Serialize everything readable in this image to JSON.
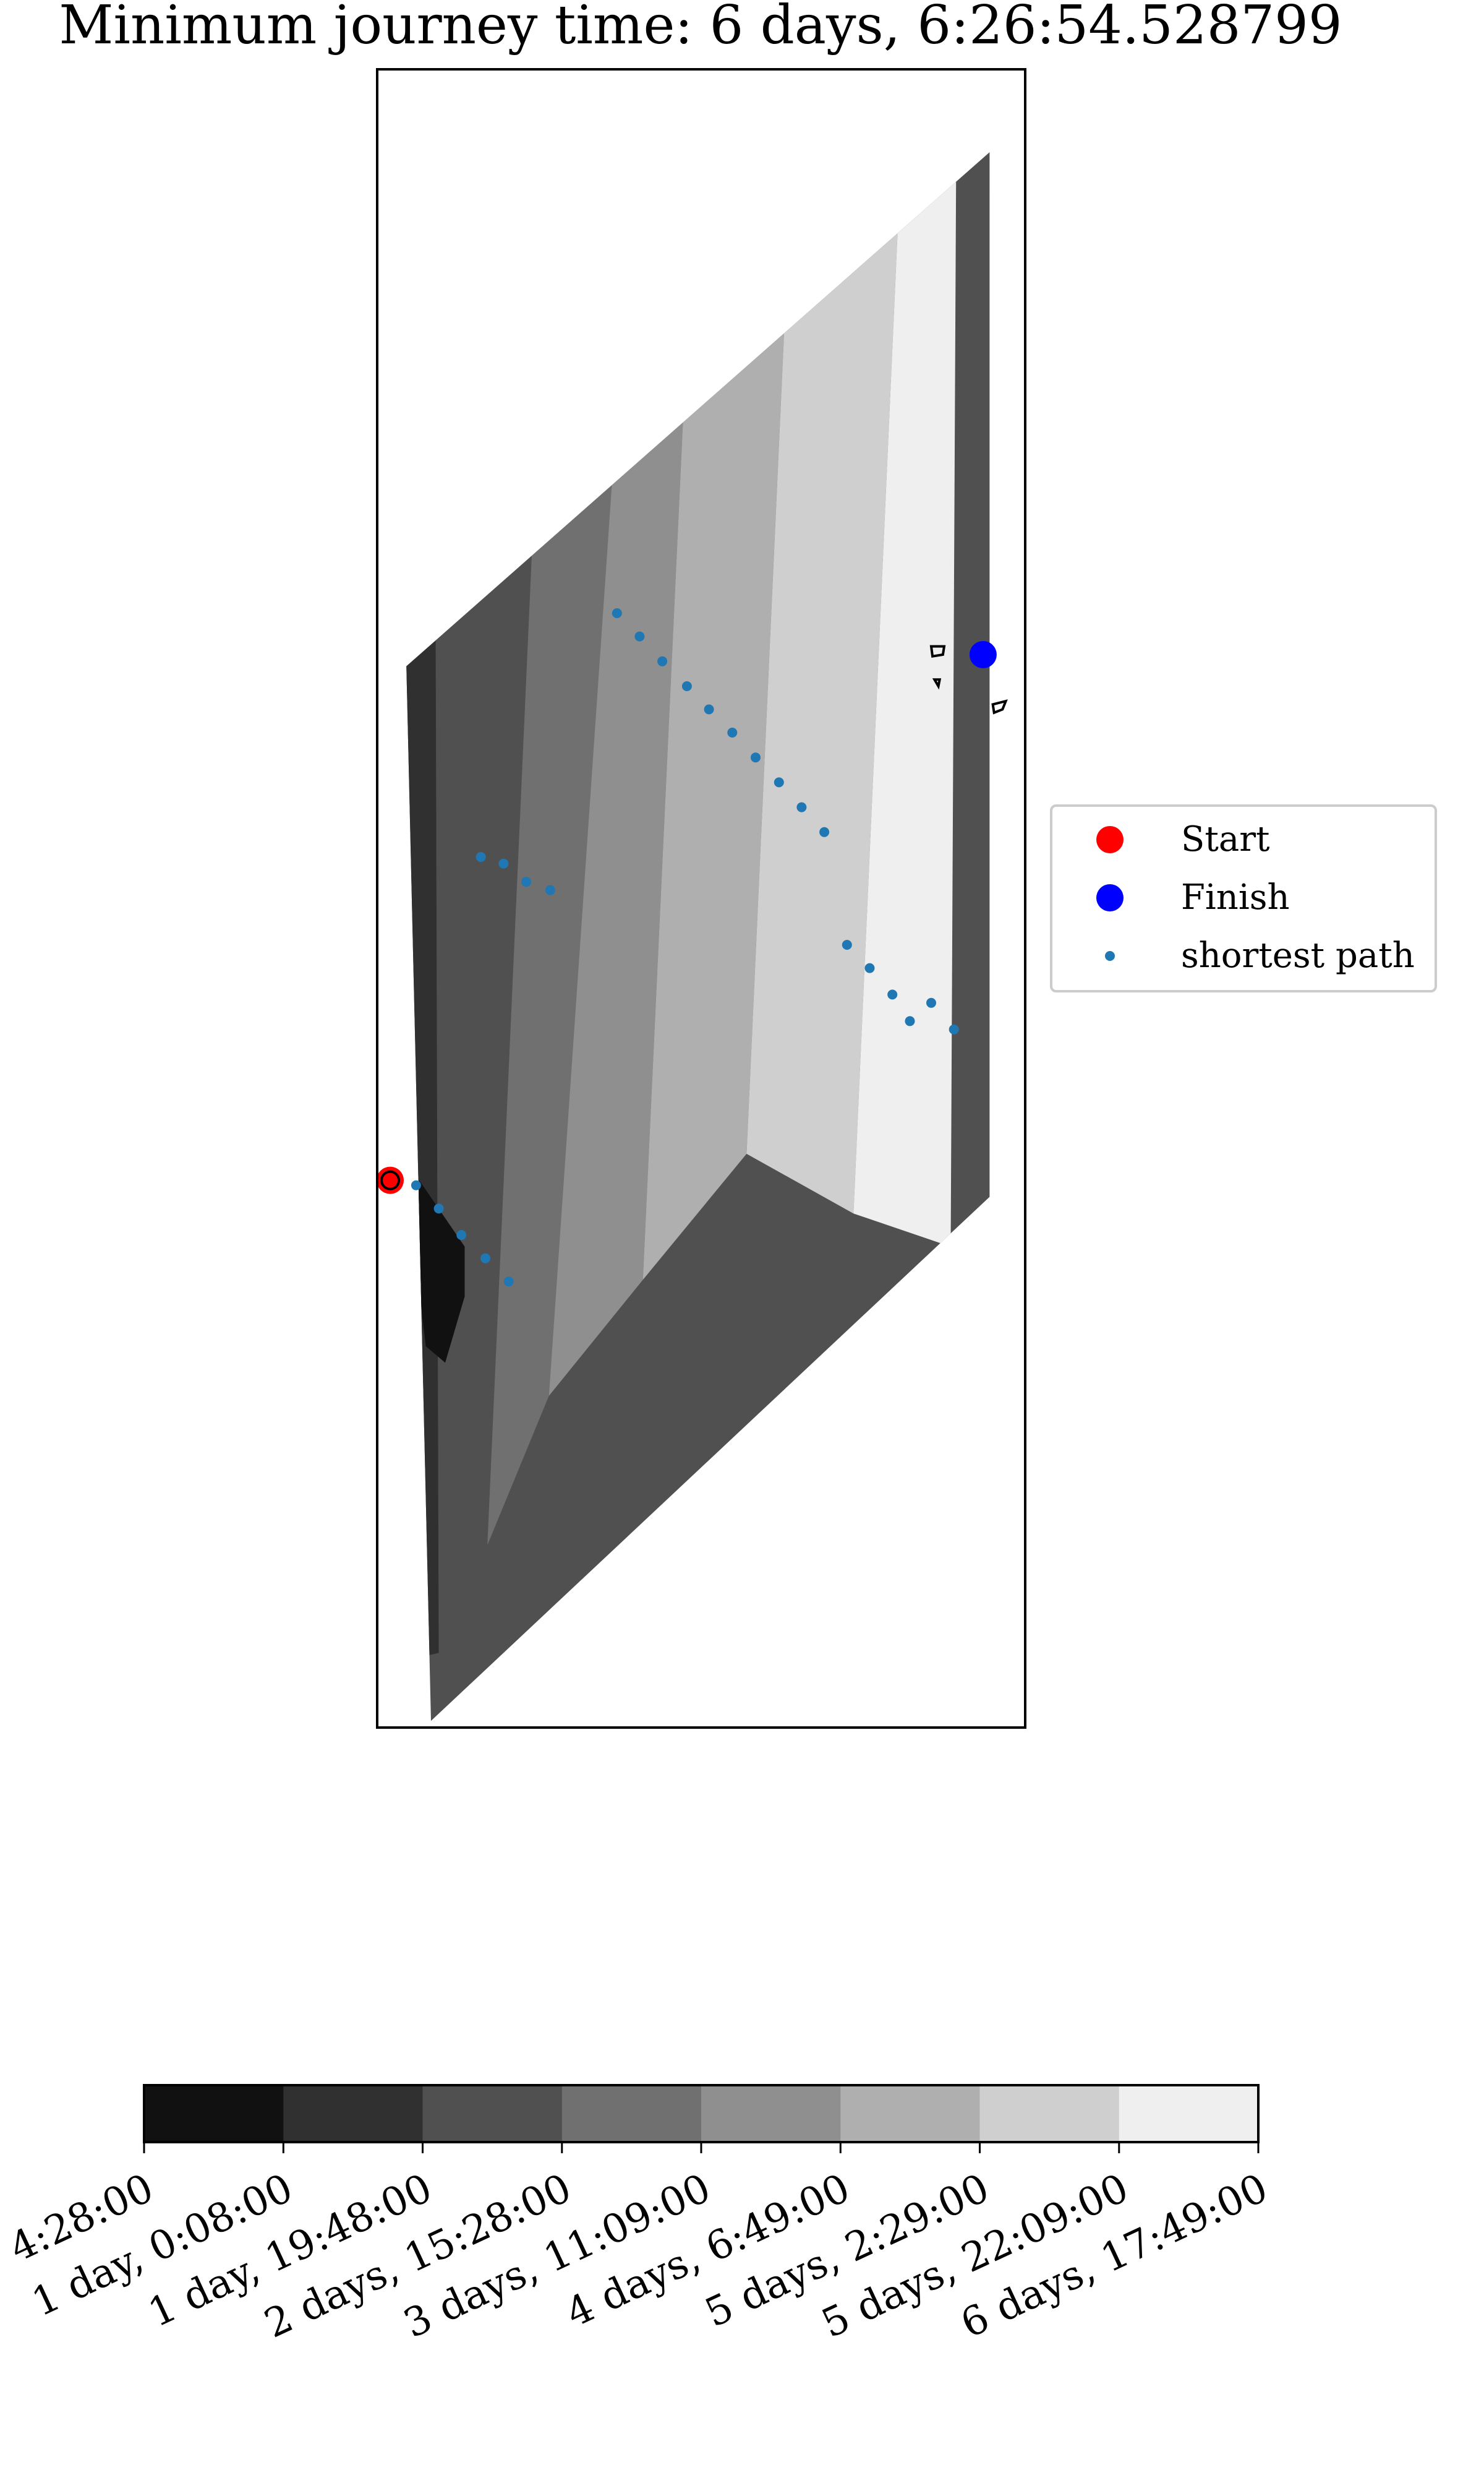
{
  "chart_data": {
    "type": "contour",
    "title": "Minimum journey time: 6 days, 6:26:54.528799",
    "xlabel": "",
    "ylabel": "",
    "grid": false,
    "legend_placement": "outside-right",
    "legend": [
      {
        "label": "Start",
        "color": "#ff0000",
        "marker": "large-dot"
      },
      {
        "label": "Finish",
        "color": "#0000ff",
        "marker": "large-dot"
      },
      {
        "label": "shortest path",
        "color": "#1f77b4",
        "marker": "small-dot"
      }
    ],
    "colorbar": {
      "orientation": "horizontal",
      "levels": [
        "4:28:00",
        "1 day, 0:08:00",
        "1 day, 19:48:00",
        "2 days, 15:28:00",
        "3 days, 11:09:00",
        "4 days, 6:49:00",
        "5 days, 2:29:00",
        "5 days, 22:09:00",
        "6 days, 17:49:00"
      ],
      "band_colors": [
        "#111111",
        "#303030",
        "#505050",
        "#707070",
        "#8f8f8f",
        "#afafaf",
        "#cfcfcf",
        "#efefef"
      ]
    },
    "start": {
      "x": 0.02,
      "y": 0.33
    },
    "finish": {
      "x": 0.935,
      "y": 0.647
    },
    "shortest_path": {
      "x": [
        0.06,
        0.095,
        0.13,
        0.167,
        0.203,
        0.23,
        0.267,
        0.16,
        0.195,
        0.37,
        0.405,
        0.44,
        0.478,
        0.512,
        0.548,
        0.584,
        0.62,
        0.655,
        0.69,
        0.725,
        0.76,
        0.795,
        0.822,
        0.855,
        0.89
      ],
      "y": [
        0.327,
        0.313,
        0.297,
        0.283,
        0.269,
        0.51,
        0.505,
        0.525,
        0.521,
        0.672,
        0.658,
        0.643,
        0.628,
        0.614,
        0.6,
        0.585,
        0.57,
        0.555,
        0.54,
        0.472,
        0.458,
        0.442,
        0.426,
        0.437,
        0.421
      ]
    },
    "contour_bands": [
      {
        "level": 1,
        "points": [
          [
            0.04,
            0.04
          ],
          [
            0.035,
            0.65
          ],
          [
            0.09,
            0.7
          ],
          [
            0.095,
            0.045
          ]
        ]
      },
      {
        "level": 2,
        "points": [
          [
            0.095,
            0.045
          ],
          [
            0.09,
            0.7
          ],
          [
            0.255,
            0.85
          ],
          [
            0.17,
            0.11
          ]
        ]
      },
      {
        "level": 3,
        "points": [
          [
            0.17,
            0.11
          ],
          [
            0.255,
            0.85
          ],
          [
            0.405,
            0.992
          ],
          [
            0.265,
            0.2
          ]
        ]
      },
      {
        "level": 4,
        "points": [
          [
            0.265,
            0.2
          ],
          [
            0.405,
            0.992
          ],
          [
            0.508,
            1.09
          ],
          [
            0.41,
            0.27
          ]
        ]
      },
      {
        "level": 5,
        "points": [
          [
            0.41,
            0.27
          ],
          [
            0.508,
            1.09
          ],
          [
            0.675,
            1.244
          ],
          [
            0.57,
            0.346
          ]
        ]
      },
      {
        "level": 6,
        "points": [
          [
            0.57,
            0.346
          ],
          [
            0.675,
            1.244
          ],
          [
            0.865,
            1.44
          ],
          [
            0.735,
            0.31
          ]
        ]
      },
      {
        "level": 7,
        "points": [
          [
            0.735,
            0.31
          ],
          [
            0.865,
            1.44
          ],
          [
            0.9,
            1.45
          ],
          [
            0.885,
            0.29
          ]
        ]
      }
    ],
    "deep_patch": {
      "level": 0,
      "points": [
        [
          0.065,
          0.33
        ],
        [
          0.135,
          0.29
        ],
        [
          0.135,
          0.26
        ],
        [
          0.105,
          0.22
        ],
        [
          0.075,
          0.23
        ],
        [
          0.06,
          0.28
        ]
      ]
    },
    "islands": [
      {
        "points": [
          [
            0.855,
            0.652
          ],
          [
            0.875,
            0.652
          ],
          [
            0.873,
            0.647
          ],
          [
            0.857,
            0.646
          ]
        ]
      },
      {
        "points": [
          [
            0.86,
            0.632
          ],
          [
            0.868,
            0.632
          ],
          [
            0.866,
            0.628
          ]
        ]
      },
      {
        "points": [
          [
            0.95,
            0.617
          ],
          [
            0.97,
            0.619
          ],
          [
            0.965,
            0.614
          ],
          [
            0.952,
            0.612
          ]
        ]
      }
    ]
  }
}
